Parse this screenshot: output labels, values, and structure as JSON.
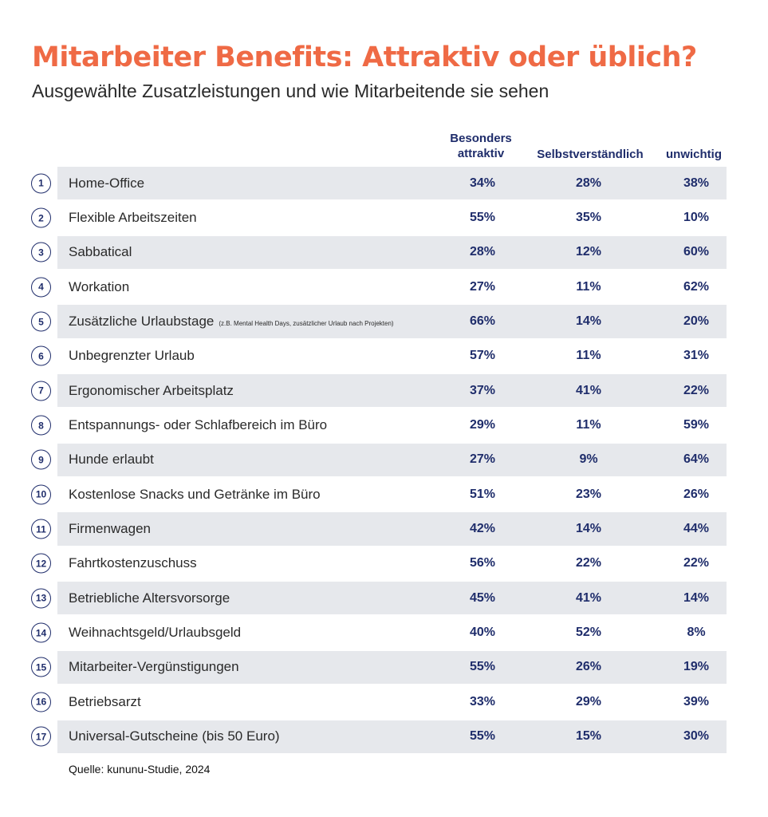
{
  "chart_data": {
    "type": "table",
    "title": "Mitarbeiter Benefits: Attraktiv oder üblich?",
    "subtitle": "Ausgewählte Zusatzleistungen und wie Mitarbeitende sie sehen",
    "columns": [
      "Besonders attraktiv",
      "Selbstverständlich",
      "unwichtig"
    ],
    "column_labels": [
      {
        "line1": "Besonders",
        "line2": "attraktiv"
      },
      {
        "line1": "Selbstverständlich",
        "line2": ""
      },
      {
        "line1": "unwichtig",
        "line2": ""
      }
    ],
    "rows": [
      {
        "num": "1",
        "label": "Home-Office",
        "note": "",
        "values": [
          "34%",
          "28%",
          "38%"
        ]
      },
      {
        "num": "2",
        "label": "Flexible Arbeitszeiten",
        "note": "",
        "values": [
          "55%",
          "35%",
          "10%"
        ]
      },
      {
        "num": "3",
        "label": "Sabbatical",
        "note": "",
        "values": [
          "28%",
          "12%",
          "60%"
        ]
      },
      {
        "num": "4",
        "label": "Workation",
        "note": "",
        "values": [
          "27%",
          "11%",
          "62%"
        ]
      },
      {
        "num": "5",
        "label": "Zusätzliche Urlaubstage",
        "note": "(z.B. Mental Health Days, zusätzlicher Urlaub nach Projekten)",
        "values": [
          "66%",
          "14%",
          "20%"
        ]
      },
      {
        "num": "6",
        "label": "Unbegrenzter Urlaub",
        "note": "",
        "values": [
          "57%",
          "11%",
          "31%"
        ]
      },
      {
        "num": "7",
        "label": "Ergonomischer Arbeitsplatz",
        "note": "",
        "values": [
          "37%",
          "41%",
          "22%"
        ]
      },
      {
        "num": "8",
        "label": "Entspannungs- oder Schlafbereich im Büro",
        "note": "",
        "values": [
          "29%",
          "11%",
          "59%"
        ]
      },
      {
        "num": "9",
        "label": "Hunde erlaubt",
        "note": "",
        "values": [
          "27%",
          "9%",
          "64%"
        ]
      },
      {
        "num": "10",
        "label": "Kostenlose Snacks und Getränke im Büro",
        "note": "",
        "values": [
          "51%",
          "23%",
          "26%"
        ]
      },
      {
        "num": "11",
        "label": "Firmenwagen",
        "note": "",
        "values": [
          "42%",
          "14%",
          "44%"
        ]
      },
      {
        "num": "12",
        "label": "Fahrtkostenzuschuss",
        "note": "",
        "values": [
          "56%",
          "22%",
          "22%"
        ]
      },
      {
        "num": "13",
        "label": "Betriebliche Altersvorsorge",
        "note": "",
        "values": [
          "45%",
          "41%",
          "14%"
        ]
      },
      {
        "num": "14",
        "label": "Weihnachtsgeld/Urlaubsgeld",
        "note": "",
        "values": [
          "40%",
          "52%",
          "8%"
        ]
      },
      {
        "num": "15",
        "label": "Mitarbeiter-Vergünstigungen",
        "note": "",
        "values": [
          "55%",
          "26%",
          "19%"
        ]
      },
      {
        "num": "16",
        "label": "Betriebsarzt",
        "note": "",
        "values": [
          "33%",
          "29%",
          "39%"
        ]
      },
      {
        "num": "17",
        "label": "Universal-Gutscheine (bis 50 Euro)",
        "note": "",
        "values": [
          "55%",
          "15%",
          "30%"
        ]
      }
    ],
    "source": "Quelle: kununu-Studie, 2024"
  },
  "colors": {
    "title": "#ef6a45",
    "accent": "#1f2d6b",
    "band": "#e6e8ec"
  }
}
